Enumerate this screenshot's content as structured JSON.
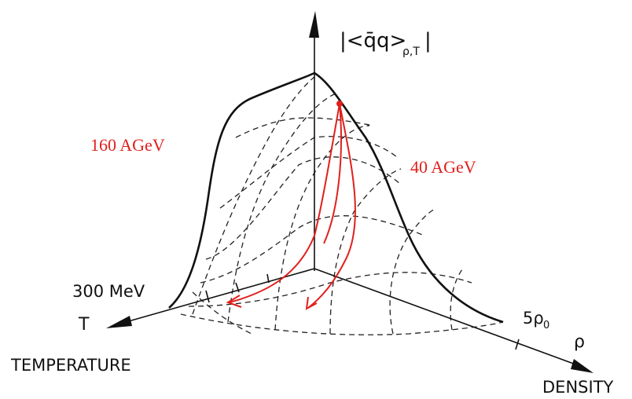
{
  "labels": {
    "condensate": {
      "main": "|<q̄q>",
      "subscript": "ρ,T",
      "close": "|"
    },
    "energy_high": "160 AGeV",
    "energy_low": "40 AGeV",
    "temperature_tick": "300 MeV",
    "temperature_symbol": "T",
    "temperature_axis": "TEMPERATURE",
    "density_tick": {
      "main": "5ρ",
      "subscript": "0"
    },
    "density_symbol": "ρ",
    "density_axis": "DENSITY"
  }
}
